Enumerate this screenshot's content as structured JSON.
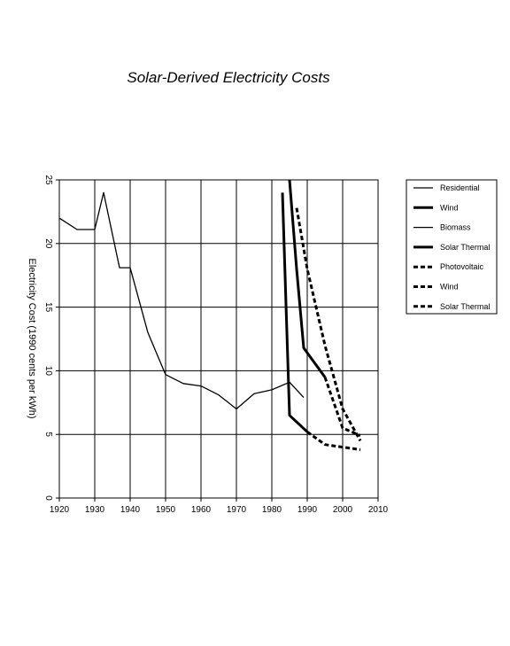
{
  "chart_data": {
    "type": "line",
    "title": "Solar-Derived Electricity Costs",
    "xlabel": "",
    "ylabel": "Electricity Cost (1990 cents per kWh)",
    "xlim": [
      1920,
      2010
    ],
    "ylim": [
      0,
      25
    ],
    "x_ticks": [
      1920,
      1930,
      1940,
      1950,
      1960,
      1970,
      1980,
      1990,
      2000,
      2010
    ],
    "y_ticks": [
      0,
      5,
      10,
      15,
      20,
      25
    ],
    "grid": true,
    "legend_position": "right",
    "series": [
      {
        "name": "Residential",
        "style": "solid",
        "weight": "thin",
        "points": [
          [
            1920,
            22
          ],
          [
            1925,
            21.1
          ],
          [
            1930,
            21.1
          ],
          [
            1932.5,
            24
          ],
          [
            1937,
            18.1
          ],
          [
            1940,
            18.1
          ],
          [
            1945,
            13
          ],
          [
            1950,
            9.7
          ],
          [
            1955,
            9
          ],
          [
            1960,
            8.8
          ],
          [
            1965,
            8.1
          ],
          [
            1970,
            7
          ],
          [
            1975,
            8.2
          ],
          [
            1980,
            8.5
          ],
          [
            1985,
            9.1
          ],
          [
            1989,
            7.9
          ]
        ]
      },
      {
        "name": "Wind",
        "style": "solid",
        "weight": "thick",
        "points": [
          [
            1983,
            24
          ],
          [
            1985,
            6.5
          ],
          [
            1990,
            5.2
          ]
        ]
      },
      {
        "name": "Biomass",
        "style": "solid",
        "weight": "thin",
        "points": []
      },
      {
        "name": "Solar Thermal",
        "style": "solid",
        "weight": "thick",
        "points": [
          [
            1985,
            25
          ],
          [
            1987,
            18
          ],
          [
            1989,
            11.8
          ],
          [
            1995,
            9.5
          ]
        ]
      },
      {
        "name": "Photovoltaic",
        "style": "dashed",
        "weight": "thick",
        "points": [
          [
            1990,
            5.2
          ],
          [
            1995,
            4.2
          ],
          [
            2000,
            4.0
          ],
          [
            2005,
            3.8
          ]
        ]
      },
      {
        "name": "Wind",
        "style": "dashed",
        "weight": "thick",
        "points": [
          [
            1987,
            22.8
          ],
          [
            1990,
            18
          ],
          [
            1995,
            12
          ],
          [
            2000,
            7
          ],
          [
            2005,
            4.5
          ]
        ]
      },
      {
        "name": "Solar Thermal",
        "style": "dashed",
        "weight": "thick",
        "points": [
          [
            1995,
            9.5
          ],
          [
            2000,
            5.5
          ],
          [
            2005,
            4.9
          ]
        ]
      }
    ]
  }
}
